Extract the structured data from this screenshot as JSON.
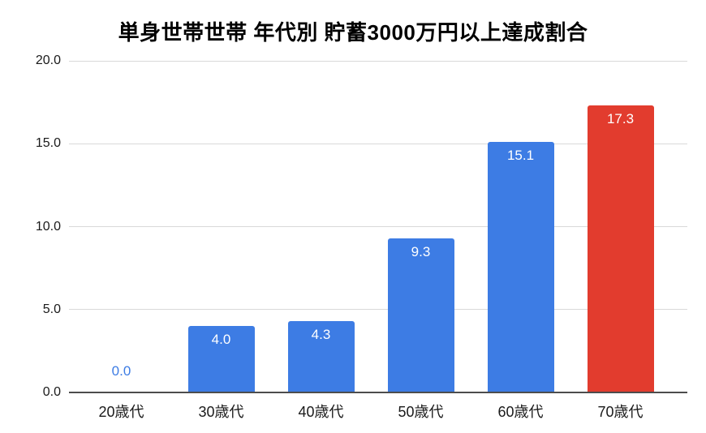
{
  "chart_data": {
    "type": "bar",
    "title": "単身世帯世帯 年代別 貯蓄3000万円以上達成割合",
    "categories": [
      "20歳代",
      "30歳代",
      "40歳代",
      "50歳代",
      "60歳代",
      "70歳代"
    ],
    "values": [
      0.0,
      4.0,
      4.3,
      9.3,
      15.1,
      17.3
    ],
    "value_labels": [
      "0.0",
      "4.0",
      "4.3",
      "9.3",
      "15.1",
      "17.3"
    ],
    "bar_colors": [
      "#3d7ce4",
      "#3d7ce4",
      "#3d7ce4",
      "#3d7ce4",
      "#3d7ce4",
      "#e23c2e"
    ],
    "xlabel": "",
    "ylabel": "",
    "ylim": [
      0,
      20
    ],
    "yticks": [
      {
        "value": 0,
        "label": "0.0"
      },
      {
        "value": 5,
        "label": "5.0"
      },
      {
        "value": 10,
        "label": "10.0"
      },
      {
        "value": 15,
        "label": "15.0"
      },
      {
        "value": 20,
        "label": "20.0"
      }
    ],
    "grid": true,
    "legend": "none"
  },
  "colors": {
    "bar_blue": "#3d7ce4",
    "bar_red": "#e23c2e",
    "gridline": "#d9d9d9",
    "axis_line": "#4d4d4d",
    "title_text": "#000000",
    "tick_text": "#1a1a1a",
    "bar_label_text": "#ffffff",
    "background": "#ffffff"
  }
}
